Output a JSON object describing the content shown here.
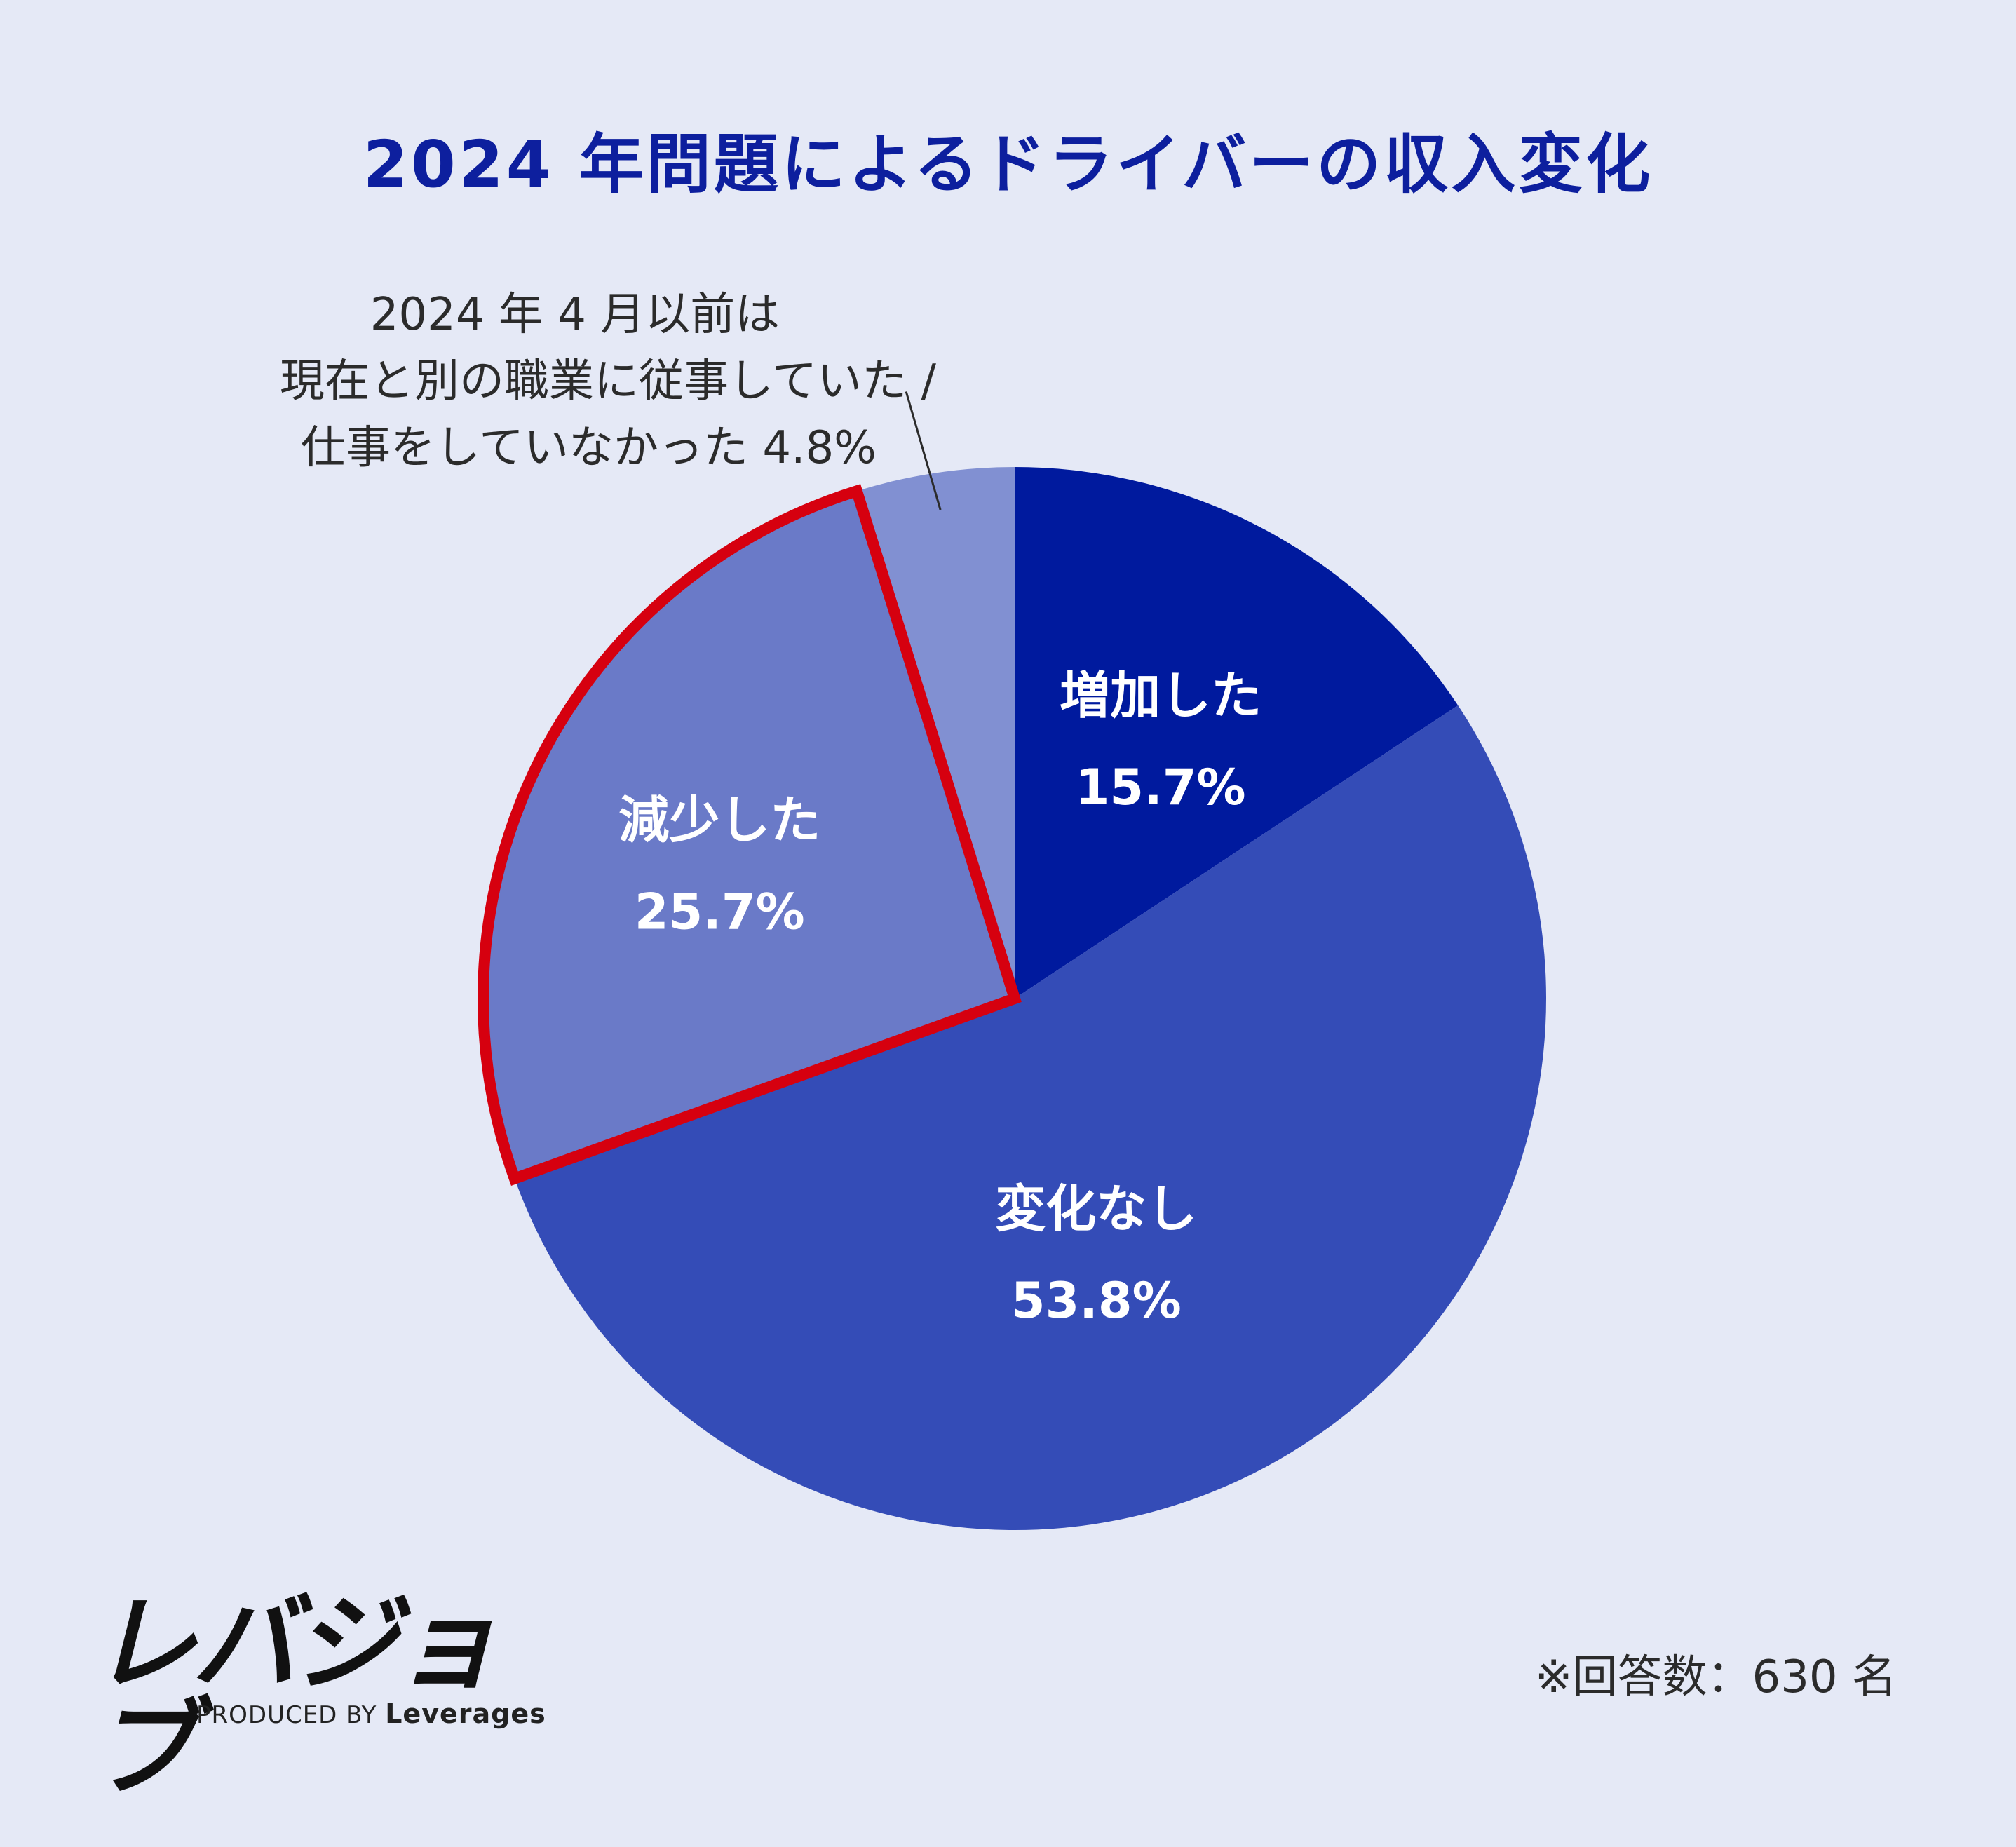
{
  "title": "2024 年問題によるドライバーの収入変化",
  "colors": {
    "background": "#e5e9f6",
    "title": "#0d1f9e",
    "highlight_border": "#d6000f",
    "callout_line": "#2b2b2b"
  },
  "chart_data": {
    "type": "pie",
    "start_angle_deg": 0,
    "direction": "clockwise",
    "slices": [
      {
        "label": "増加した",
        "value": 15.7,
        "value_label": "15.7%",
        "color": "#001a9e",
        "highlighted": false
      },
      {
        "label": "変化なし",
        "value": 53.8,
        "value_label": "53.8%",
        "color": "#344cb7",
        "highlighted": false
      },
      {
        "label": "減少した",
        "value": 25.7,
        "value_label": "25.7%",
        "color": "#6a7ac8",
        "highlighted": true
      },
      {
        "label": "2024 年 4 月以前は現在と別の職業に従事していた / 仕事をしていなかった",
        "value": 4.8,
        "value_label": "4.8%",
        "color": "#8190d2",
        "highlighted": false
      }
    ],
    "callout": {
      "lines": [
        "2024 年 4 月以前は",
        "現在と別の職業に従事していた /",
        "仕事をしていなかった 4.8%"
      ]
    }
  },
  "logo": {
    "main": "レバジョブ",
    "sub_prefix": "PRODUCED BY",
    "sub_brand": "Leverages"
  },
  "footnote": "※回答数：630 名"
}
